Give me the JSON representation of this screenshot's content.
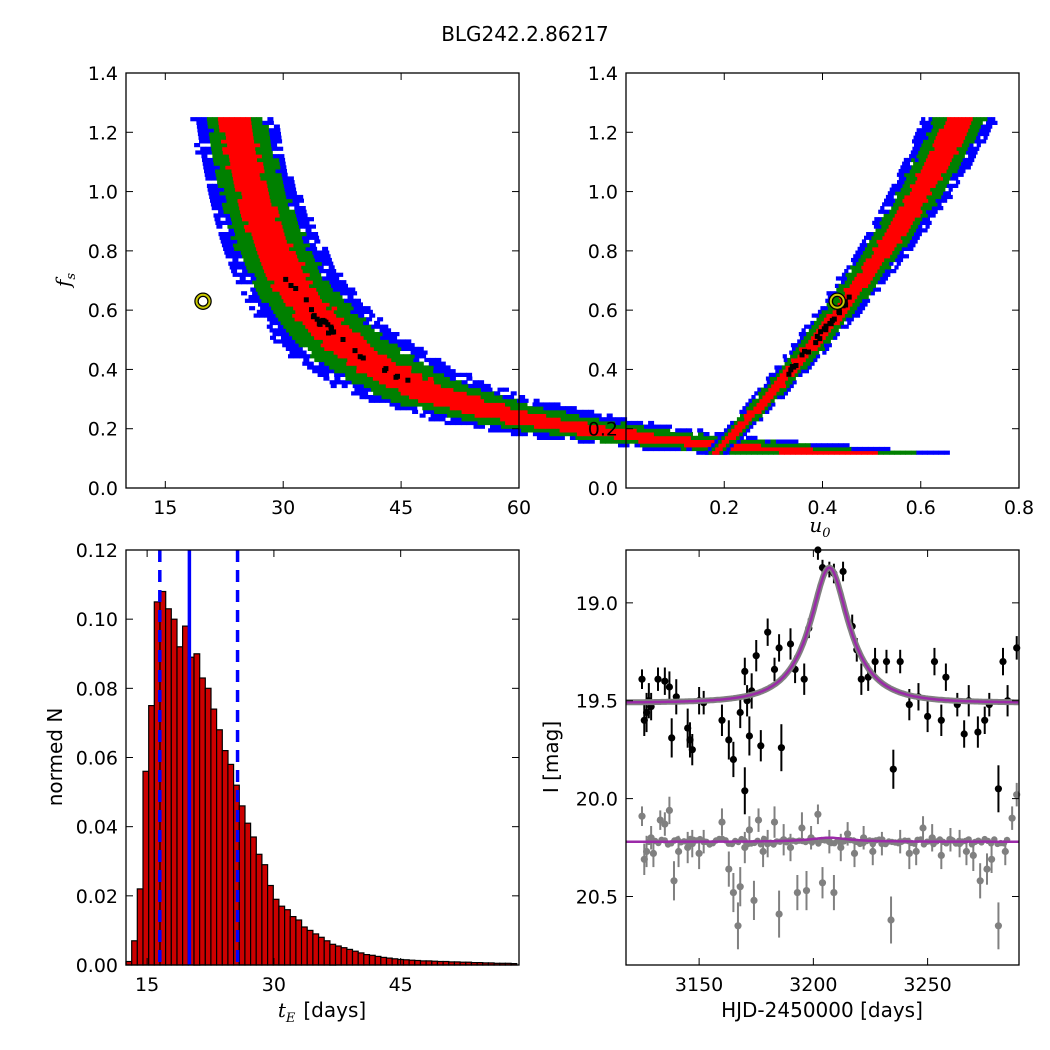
{
  "figure": {
    "title": "BLG242.2.86217"
  },
  "colors": {
    "contour_1sigma": "#ff0000",
    "contour_2sigma": "#008000",
    "contour_3sigma": "#0000ff",
    "best_samples": "#000000",
    "best_fit_marker": "#c8c800",
    "hist_fill": "#cc0000",
    "median_line": "#0000ff",
    "model_curve": "#9b2aa8",
    "data_I": "#000000",
    "data_V": "#808080"
  },
  "chart_data": [
    {
      "type": "heatmap",
      "name": "fs_vs_tE",
      "xlabel": "",
      "ylabel": "f_s",
      "ylabel_main": "f",
      "ylabel_sub": "s",
      "xlim": [
        10,
        60
      ],
      "ylim": [
        0,
        1.4
      ],
      "xticks": [
        "15",
        "30",
        "45",
        "60"
      ],
      "yticks": [
        "0.0",
        "0.2",
        "0.4",
        "0.6",
        "0.8",
        "1.0",
        "1.2",
        "1.4"
      ],
      "xtick_values": [
        15,
        30,
        45,
        60
      ],
      "ytick_values": [
        0,
        0.2,
        0.4,
        0.6,
        0.8,
        1.0,
        1.2,
        1.4
      ],
      "relation": "tE = 14.6 + 11.8 / (fs + 0.02)",
      "fs_range": [
        0.12,
        1.25
      ],
      "best_fit": {
        "tE": 19.8,
        "fs": 0.63
      }
    },
    {
      "type": "heatmap",
      "name": "fs_vs_u0",
      "xlabel": "u_0",
      "xlabel_main": "u",
      "xlabel_sub": "0",
      "ylabel": "",
      "xlim": [
        0,
        0.8
      ],
      "ylim": [
        0,
        1.4
      ],
      "xticks": [
        "0.2",
        "0.4",
        "0.6",
        "0.8"
      ],
      "yticks": [
        "0.0",
        "0.2",
        "0.4",
        "0.6",
        "0.8",
        "1.0",
        "1.2",
        "1.4"
      ],
      "xtick_values": [
        0.2,
        0.4,
        0.6,
        0.8
      ],
      "ytick_values": [
        0,
        0.2,
        0.4,
        0.6,
        0.8,
        1.0,
        1.2,
        1.4
      ],
      "relation": "u0 = 0.11 + 0.62*fs - 0.13*fs^2",
      "fs_range": [
        0.12,
        1.25
      ],
      "best_fit": {
        "u0": 0.43,
        "fs": 0.63
      }
    },
    {
      "type": "bar",
      "name": "tE_histogram",
      "xlabel": "t_E  [days]",
      "xlabel_main": "t",
      "xlabel_sub": "E",
      "xlabel_rest": "[days]",
      "ylabel": "normed N",
      "xlim": [
        12.5,
        59
      ],
      "ylim": [
        0,
        0.12
      ],
      "xticks": [
        "15",
        "30",
        "45"
      ],
      "yticks": [
        "0.00",
        "0.02",
        "0.04",
        "0.06",
        "0.08",
        "0.10",
        "0.12"
      ],
      "xtick_values": [
        15,
        30,
        45
      ],
      "ytick_values": [
        0,
        0.02,
        0.04,
        0.06,
        0.08,
        0.1,
        0.12
      ],
      "bin_start": 12.5,
      "bin_width": 0.67,
      "values": [
        0.001,
        0.007,
        0.022,
        0.056,
        0.075,
        0.105,
        0.108,
        0.103,
        0.1,
        0.092,
        0.098,
        0.089,
        0.09,
        0.083,
        0.08,
        0.074,
        0.068,
        0.062,
        0.058,
        0.052,
        0.046,
        0.041,
        0.037,
        0.032,
        0.029,
        0.023,
        0.019,
        0.017,
        0.016,
        0.014,
        0.013,
        0.011,
        0.01,
        0.009,
        0.008,
        0.007,
        0.006,
        0.0055,
        0.005,
        0.0045,
        0.004,
        0.0035,
        0.003,
        0.0028,
        0.0025,
        0.0022,
        0.002,
        0.0018,
        0.0016,
        0.0015,
        0.0014,
        0.0013,
        0.0012,
        0.0012,
        0.0011,
        0.001,
        0.001,
        0.0009,
        0.0009,
        0.0008,
        0.0008,
        0.0007,
        0.0007,
        0.0006,
        0.0006,
        0.0005,
        0.0005,
        0.0005,
        0.0004
      ],
      "median": 20.0,
      "lower": 16.5,
      "upper": 25.7
    },
    {
      "type": "scatter",
      "name": "light_curve",
      "xlabel": "HJD-2450000 [days]",
      "ylabel": "I [mag]",
      "xlim": [
        3118,
        3290
      ],
      "ylim": [
        20.85,
        18.73
      ],
      "xticks": [
        "3150",
        "3200",
        "3250"
      ],
      "yticks": [
        "19.0",
        "19.5",
        "20.0",
        "20.5"
      ],
      "xtick_values": [
        3150,
        3200,
        3250
      ],
      "ytick_values": [
        19.0,
        19.5,
        20.0,
        20.5
      ],
      "model": {
        "t0": 3207,
        "tE": 20.0,
        "u0": 0.43,
        "base_I": 19.51,
        "peak_I": 18.82,
        "base_V": 20.22,
        "v_bump": 0.02
      },
      "series": [
        {
          "name": "",
          "points": [
            [
              3125,
              19.39,
              0.05
            ],
            [
              3126,
              19.6,
              0.08
            ],
            [
              3127,
              19.56,
              0.1
            ],
            [
              3128,
              19.5,
              0.09
            ],
            [
              3129,
              19.53,
              0.07
            ],
            [
              3132,
              19.39,
              0.06
            ],
            [
              3135,
              19.4,
              0.07
            ],
            [
              3137,
              19.43,
              0.08
            ],
            [
              3138,
              19.69,
              0.1
            ],
            [
              3140,
              19.48,
              0.09
            ],
            [
              3145,
              19.64,
              0.1
            ],
            [
              3146,
              19.7,
              0.09
            ],
            [
              3147,
              19.75,
              0.08
            ],
            [
              3150,
              19.5,
              0.07
            ],
            [
              3152,
              19.51,
              0.06
            ],
            [
              3160,
              19.6,
              0.08
            ],
            [
              3163,
              19.7,
              0.1
            ],
            [
              3165,
              19.8,
              0.09
            ],
            [
              3168,
              19.56,
              0.08
            ],
            [
              3170,
              19.35,
              0.07
            ],
            [
              3170,
              19.96,
              0.12
            ],
            [
              3171,
              19.5,
              0.08
            ],
            [
              3172,
              19.68,
              0.1
            ],
            [
              3173,
              19.45,
              0.09
            ],
            [
              3175,
              19.27,
              0.08
            ],
            [
              3177,
              19.73,
              0.08
            ],
            [
              3180,
              19.15,
              0.07
            ],
            [
              3183,
              19.34,
              0.06
            ],
            [
              3185,
              19.23,
              0.07
            ],
            [
              3186,
              19.74,
              0.12
            ],
            [
              3190,
              19.21,
              0.08
            ],
            [
              3192,
              19.34,
              0.07
            ],
            [
              3196,
              19.39,
              0.08
            ],
            [
              3198,
              19.13,
              0.05
            ],
            [
              3202,
              18.73,
              0.05
            ],
            [
              3204,
              18.82,
              0.04
            ],
            [
              3207,
              18.83,
              0.04
            ],
            [
              3209,
              18.85,
              0.05
            ],
            [
              3213,
              18.84,
              0.05
            ],
            [
              3217,
              19.12,
              0.06
            ],
            [
              3219,
              19.24,
              0.06
            ],
            [
              3221,
              19.39,
              0.08
            ],
            [
              3224,
              19.38,
              0.07
            ],
            [
              3227,
              19.3,
              0.07
            ],
            [
              3232,
              19.3,
              0.06
            ],
            [
              3235,
              19.85,
              0.1
            ],
            [
              3238,
              19.3,
              0.06
            ],
            [
              3242,
              19.52,
              0.08
            ],
            [
              3246,
              19.48,
              0.07
            ],
            [
              3250,
              19.58,
              0.08
            ],
            [
              3253,
              19.3,
              0.07
            ],
            [
              3256,
              19.6,
              0.08
            ],
            [
              3258,
              19.38,
              0.07
            ],
            [
              3263,
              19.52,
              0.06
            ],
            [
              3266,
              19.67,
              0.07
            ],
            [
              3268,
              19.5,
              0.08
            ],
            [
              3272,
              19.66,
              0.08
            ],
            [
              3275,
              19.6,
              0.07
            ],
            [
              3277,
              19.52,
              0.06
            ],
            [
              3281,
              19.95,
              0.12
            ],
            [
              3283,
              19.3,
              0.07
            ],
            [
              3285,
              19.5,
              0.08
            ],
            [
              3289,
              19.23,
              0.06
            ]
          ]
        },
        {
          "name": "",
          "points": [
            [
              3125,
              20.09,
              0.05
            ],
            [
              3126,
              20.31,
              0.08
            ],
            [
              3127,
              20.27,
              0.08
            ],
            [
              3129,
              20.2,
              0.06
            ],
            [
              3130,
              20.28,
              0.07
            ],
            [
              3133,
              20.11,
              0.05
            ],
            [
              3135,
              20.13,
              0.06
            ],
            [
              3137,
              20.06,
              0.07
            ],
            [
              3139,
              20.42,
              0.1
            ],
            [
              3141,
              20.27,
              0.08
            ],
            [
              3145,
              20.25,
              0.08
            ],
            [
              3147,
              20.23,
              0.07
            ],
            [
              3150,
              20.28,
              0.08
            ],
            [
              3152,
              20.22,
              0.06
            ],
            [
              3160,
              20.12,
              0.07
            ],
            [
              3163,
              20.36,
              0.09
            ],
            [
              3165,
              20.48,
              0.1
            ],
            [
              3167,
              20.65,
              0.12
            ],
            [
              3168,
              20.45,
              0.1
            ],
            [
              3170,
              20.25,
              0.08
            ],
            [
              3172,
              20.16,
              0.07
            ],
            [
              3174,
              20.52,
              0.1
            ],
            [
              3176,
              20.11,
              0.06
            ],
            [
              3178,
              20.27,
              0.08
            ],
            [
              3180,
              20.23,
              0.07
            ],
            [
              3183,
              20.12,
              0.08
            ],
            [
              3185,
              20.59,
              0.12
            ],
            [
              3187,
              20.21,
              0.08
            ],
            [
              3190,
              20.25,
              0.07
            ],
            [
              3193,
              20.48,
              0.09
            ],
            [
              3195,
              20.15,
              0.08
            ],
            [
              3197,
              20.47,
              0.1
            ],
            [
              3199,
              20.2,
              0.06
            ],
            [
              3202,
              20.08,
              0.05
            ],
            [
              3204,
              20.43,
              0.08
            ],
            [
              3207,
              20.22,
              0.06
            ],
            [
              3209,
              20.48,
              0.09
            ],
            [
              3212,
              20.25,
              0.07
            ],
            [
              3215,
              20.18,
              0.06
            ],
            [
              3218,
              20.28,
              0.07
            ],
            [
              3222,
              20.2,
              0.06
            ],
            [
              3226,
              20.27,
              0.07
            ],
            [
              3230,
              20.23,
              0.06
            ],
            [
              3234,
              20.62,
              0.12
            ],
            [
              3238,
              20.22,
              0.06
            ],
            [
              3242,
              20.28,
              0.08
            ],
            [
              3245,
              20.27,
              0.07
            ],
            [
              3248,
              20.15,
              0.06
            ],
            [
              3252,
              20.2,
              0.07
            ],
            [
              3256,
              20.29,
              0.07
            ],
            [
              3260,
              20.21,
              0.06
            ],
            [
              3264,
              20.23,
              0.07
            ],
            [
              3267,
              20.27,
              0.07
            ],
            [
              3270,
              20.29,
              0.08
            ],
            [
              3273,
              20.42,
              0.09
            ],
            [
              3276,
              20.36,
              0.08
            ],
            [
              3278,
              20.31,
              0.07
            ],
            [
              3281,
              20.65,
              0.12
            ],
            [
              3284,
              20.27,
              0.07
            ],
            [
              3287,
              20.1,
              0.06
            ],
            [
              3289,
              19.98,
              0.06
            ]
          ]
        }
      ]
    }
  ]
}
